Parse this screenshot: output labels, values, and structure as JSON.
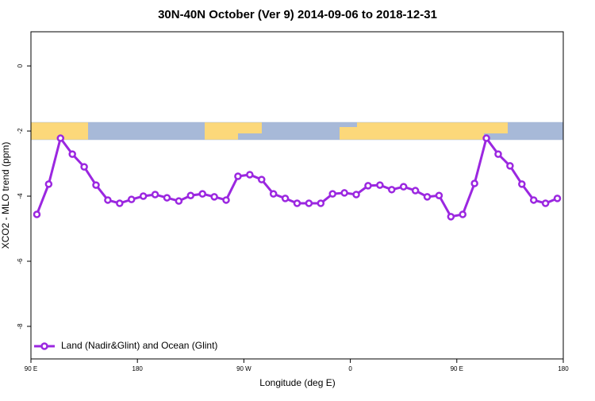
{
  "chart_data": {
    "type": "line",
    "title": "30N-40N October (Ver 9)   2014-09-06 to 2018-12-31",
    "x_label": "Longitude (deg E)",
    "y_label": "XCO2 - MLO trend (ppm)",
    "x": [
      95,
      105,
      115,
      125,
      135,
      145,
      155,
      165,
      175,
      185,
      195,
      205,
      215,
      225,
      235,
      245,
      255,
      265,
      275,
      285,
      295,
      305,
      315,
      325,
      335,
      345,
      355,
      365,
      375,
      385,
      395,
      405,
      415,
      425,
      435,
      445,
      455,
      465,
      475,
      485,
      495,
      505,
      515,
      525,
      535
    ],
    "series": [
      {
        "name": "Land (Nadir&Glint) and Ocean (Glint)",
        "color": "#9b27e0",
        "values": [
          -4.56,
          -3.63,
          -2.22,
          -2.71,
          -3.1,
          -3.66,
          -4.12,
          -4.22,
          -4.1,
          -4.0,
          -3.95,
          -4.05,
          -4.15,
          -3.98,
          -3.93,
          -4.02,
          -4.12,
          -3.39,
          -3.34,
          -3.49,
          -3.93,
          -4.07,
          -4.22,
          -4.22,
          -4.22,
          -3.93,
          -3.9,
          -3.95,
          -3.68,
          -3.66,
          -3.8,
          -3.71,
          -3.83,
          -4.02,
          -3.98,
          -4.63,
          -4.56,
          -3.61,
          -2.22,
          -2.71,
          -3.07,
          -3.63,
          -4.12,
          -4.22,
          -4.07
        ]
      }
    ],
    "xlim": [
      90,
      540
    ],
    "xticks": [
      {
        "value": 90,
        "label": "90 E"
      },
      180,
      {
        "value": 270,
        "label": "90 W"
      },
      {
        "value": 360,
        "label": "0"
      },
      {
        "value": 450,
        "label": "90 E"
      },
      {
        "value": 540,
        "label": "180"
      }
    ],
    "ylim": [
      -9,
      1.05
    ],
    "yticks": [
      0,
      -2,
      -4,
      -6,
      -8
    ],
    "legend": "bottom-left"
  }
}
